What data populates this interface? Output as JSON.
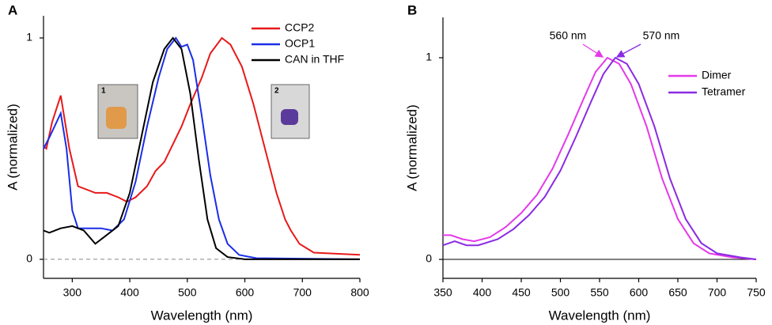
{
  "chart_data": [
    {
      "type": "line",
      "panel_label": "A",
      "xlabel": "Wavelength (nm)",
      "ylabel": "A (normalized)",
      "xlim": [
        250,
        800
      ],
      "ylim": [
        -0.086,
        1.1
      ],
      "xticks": [
        300,
        400,
        500,
        600,
        700,
        800
      ],
      "yticks": [
        0,
        1
      ],
      "insets": [
        "1",
        "2"
      ],
      "series": [
        {
          "name": "CCP2",
          "color": "#e8191a",
          "x": [
            250,
            255,
            265,
            280,
            295,
            310,
            340,
            360,
            380,
            395,
            410,
            430,
            445,
            460,
            475,
            490,
            505,
            525,
            540,
            560,
            575,
            595,
            615,
            635,
            655,
            670,
            680,
            695,
            720,
            800
          ],
          "values": [
            0.51,
            0.5,
            0.62,
            0.74,
            0.5,
            0.33,
            0.3,
            0.3,
            0.28,
            0.26,
            0.28,
            0.33,
            0.4,
            0.44,
            0.52,
            0.6,
            0.7,
            0.82,
            0.93,
            1.0,
            0.97,
            0.87,
            0.7,
            0.5,
            0.3,
            0.18,
            0.13,
            0.07,
            0.03,
            0.02
          ]
        },
        {
          "name": "OCP1",
          "color": "#1a2ee8",
          "x": [
            250,
            260,
            280,
            290,
            300,
            310,
            330,
            350,
            370,
            390,
            410,
            430,
            450,
            465,
            480,
            490,
            500,
            510,
            525,
            540,
            555,
            570,
            590,
            620,
            800
          ],
          "values": [
            0.5,
            0.55,
            0.66,
            0.5,
            0.22,
            0.14,
            0.14,
            0.14,
            0.13,
            0.18,
            0.35,
            0.6,
            0.82,
            0.95,
            1.0,
            0.96,
            0.97,
            0.9,
            0.65,
            0.38,
            0.18,
            0.07,
            0.02,
            0.005,
            0
          ]
        },
        {
          "name": "CAN in THF",
          "color": "#000000",
          "x": [
            250,
            260,
            280,
            300,
            320,
            340,
            355,
            380,
            400,
            420,
            440,
            460,
            475,
            490,
            505,
            520,
            535,
            550,
            570,
            600,
            800
          ],
          "values": [
            0.13,
            0.12,
            0.14,
            0.15,
            0.13,
            0.07,
            0.1,
            0.15,
            0.3,
            0.55,
            0.8,
            0.95,
            1.0,
            0.95,
            0.75,
            0.45,
            0.18,
            0.05,
            0.01,
            0,
            0
          ]
        }
      ]
    },
    {
      "type": "line",
      "panel_label": "B",
      "xlabel": "Wavelength (nm)",
      "ylabel": "A (normalized)",
      "xlim": [
        350,
        750
      ],
      "ylim": [
        -0.094,
        1.2
      ],
      "xticks": [
        350,
        400,
        450,
        500,
        550,
        600,
        650,
        700,
        750
      ],
      "yticks": [
        0,
        1
      ],
      "annotations": [
        "560 nm",
        "570 nm"
      ],
      "series": [
        {
          "name": "Dimer",
          "color": "#e43ae8",
          "x": [
            350,
            360,
            375,
            390,
            410,
            430,
            450,
            470,
            490,
            510,
            530,
            545,
            560,
            575,
            590,
            610,
            630,
            650,
            670,
            690,
            720,
            750
          ],
          "values": [
            0.12,
            0.12,
            0.1,
            0.09,
            0.11,
            0.16,
            0.23,
            0.32,
            0.45,
            0.62,
            0.8,
            0.93,
            1.0,
            0.97,
            0.87,
            0.66,
            0.4,
            0.2,
            0.08,
            0.03,
            0.01,
            0
          ]
        },
        {
          "name": "Tetramer",
          "color": "#8a2be2",
          "x": [
            350,
            365,
            380,
            395,
            420,
            440,
            460,
            480,
            500,
            520,
            540,
            555,
            570,
            585,
            600,
            620,
            640,
            660,
            680,
            700,
            730,
            750
          ],
          "values": [
            0.07,
            0.09,
            0.07,
            0.07,
            0.1,
            0.15,
            0.22,
            0.31,
            0.44,
            0.61,
            0.79,
            0.92,
            1.0,
            0.97,
            0.87,
            0.66,
            0.4,
            0.2,
            0.08,
            0.03,
            0.01,
            0
          ]
        }
      ]
    }
  ]
}
